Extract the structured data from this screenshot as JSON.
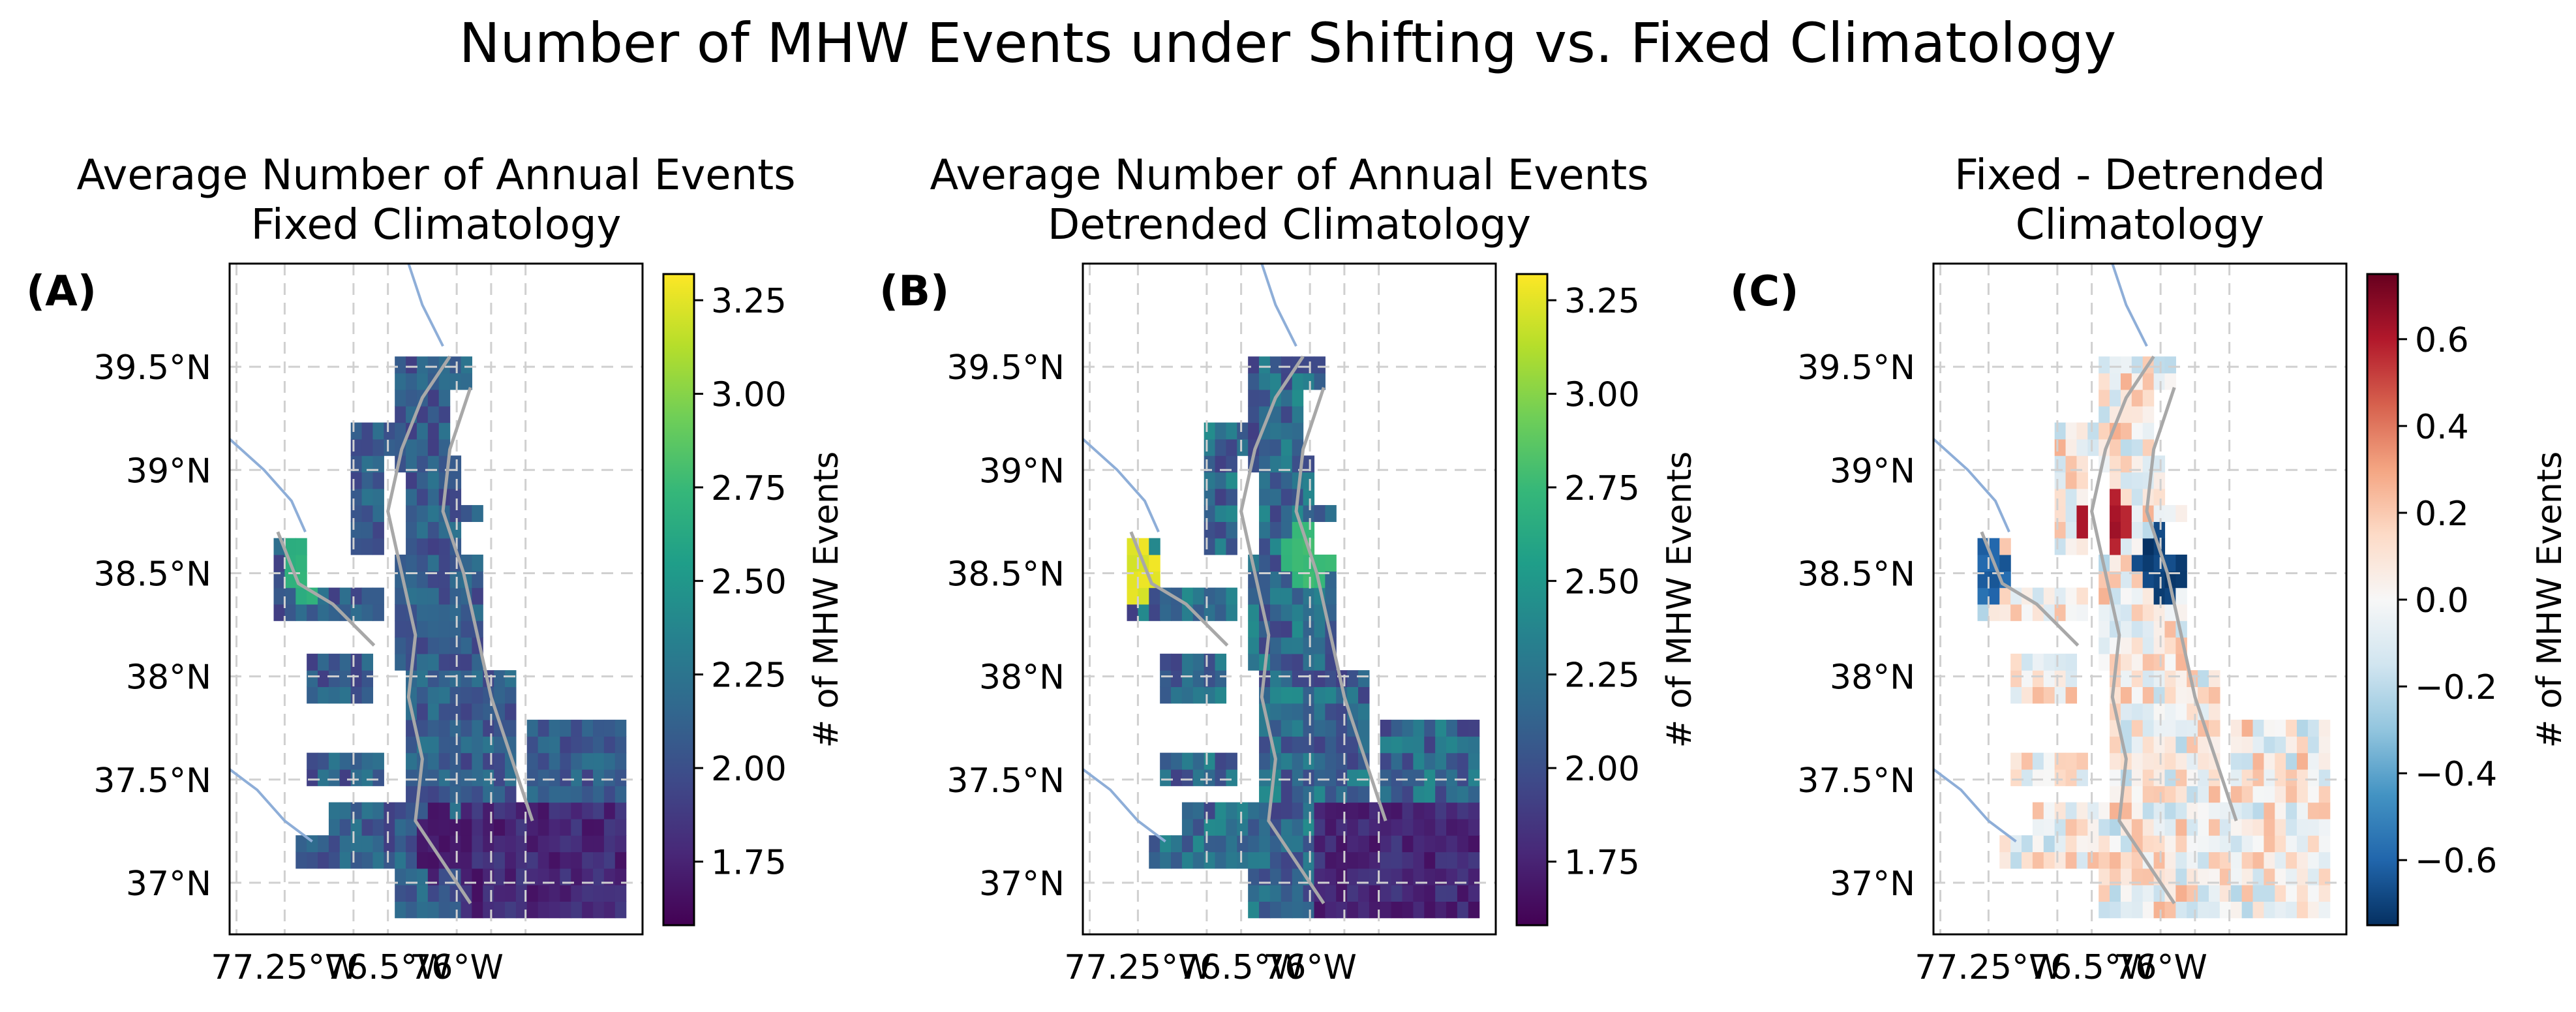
{
  "suptitle": "Number of MHW Events under Shifting vs. Fixed Climatology",
  "chart_data": [
    {
      "type": "heatmap",
      "panel_label": "(A)",
      "title_lines": [
        "Average Number of Annual Events",
        "Fixed Climatology"
      ],
      "colormap": "viridis",
      "colorbar": {
        "label": "# of MHW Events",
        "range": [
          1.58,
          3.32
        ],
        "ticks": [
          1.75,
          2.0,
          2.25,
          2.5,
          2.75,
          3.0,
          3.25
        ],
        "tick_labels": [
          "1.75",
          "2.00",
          "2.25",
          "2.50",
          "2.75",
          "3.00",
          "3.25"
        ]
      },
      "x_ticks": [
        -77.25,
        -76.5,
        -76.0
      ],
      "x_tick_labels": [
        "77.25°W",
        "76.5°W",
        "76°W"
      ],
      "y_ticks": [
        37.0,
        37.5,
        38.0,
        38.5,
        39.0,
        39.5
      ],
      "y_tick_labels": [
        "37°N",
        "37.5°N",
        "38°N",
        "38.5°N",
        "39°N",
        "39.5°N"
      ],
      "xlim": [
        -77.65,
        -74.65
      ],
      "ylim": [
        36.75,
        40.0
      ],
      "grid": true,
      "typical_value_range": [
        1.65,
        2.75
      ],
      "hotspots": [
        {
          "lon": -77.1,
          "lat": 38.55,
          "value": 2.7
        },
        {
          "lon": -76.15,
          "lat": 37.2,
          "value": 1.7
        }
      ]
    },
    {
      "type": "heatmap",
      "panel_label": "(B)",
      "title_lines": [
        "Average Number of Annual Events",
        "Detrended Climatology"
      ],
      "colormap": "viridis",
      "colorbar": {
        "label": "# of MHW Events",
        "range": [
          1.58,
          3.32
        ],
        "ticks": [
          1.75,
          2.0,
          2.25,
          2.5,
          2.75,
          3.0,
          3.25
        ],
        "tick_labels": [
          "1.75",
          "2.00",
          "2.25",
          "2.50",
          "2.75",
          "3.00",
          "3.25"
        ]
      },
      "x_ticks": [
        -77.25,
        -76.5,
        -76.0
      ],
      "x_tick_labels": [
        "77.25°W",
        "76.5°W",
        "76°W"
      ],
      "y_ticks": [
        37.0,
        37.5,
        38.0,
        38.5,
        39.0,
        39.5
      ],
      "y_tick_labels": [
        "37°N",
        "37.5°N",
        "38°N",
        "38.5°N",
        "39°N",
        "39.5°N"
      ],
      "xlim": [
        -77.65,
        -74.65
      ],
      "ylim": [
        36.75,
        40.0
      ],
      "grid": true,
      "typical_value_range": [
        1.65,
        3.25
      ],
      "hotspots": [
        {
          "lon": -77.3,
          "lat": 38.5,
          "value": 3.25
        },
        {
          "lon": -76.0,
          "lat": 38.6,
          "value": 2.75
        }
      ]
    },
    {
      "type": "heatmap",
      "panel_label": "(C)",
      "title_lines": [
        "Fixed - Detrended",
        "Climatology"
      ],
      "colormap": "RdBu_r",
      "colorbar": {
        "label": "# of MHW Events",
        "range": [
          -0.75,
          0.75
        ],
        "ticks": [
          -0.6,
          -0.4,
          -0.2,
          0.0,
          0.2,
          0.4,
          0.6
        ],
        "tick_labels": [
          "−0.6",
          "−0.4",
          "−0.2",
          "0.0",
          "0.2",
          "0.4",
          "0.6"
        ]
      },
      "x_ticks": [
        -77.25,
        -76.5,
        -76.0
      ],
      "x_tick_labels": [
        "77.25°W",
        "76.5°W",
        "76°W"
      ],
      "y_ticks": [
        37.0,
        37.5,
        38.0,
        38.5,
        39.0,
        39.5
      ],
      "y_tick_labels": [
        "37°N",
        "37.5°N",
        "38°N",
        "38.5°N",
        "39°N",
        "39.5°N"
      ],
      "xlim": [
        -77.65,
        -74.65
      ],
      "ylim": [
        36.75,
        40.0
      ],
      "grid": true,
      "typical_value_range": [
        -0.7,
        0.7
      ],
      "hotspots": [
        {
          "lon": -77.3,
          "lat": 38.5,
          "value": -0.6
        },
        {
          "lon": -76.0,
          "lat": 38.55,
          "value": -0.7
        },
        {
          "lon": -76.4,
          "lat": 38.75,
          "value": 0.6
        }
      ]
    }
  ]
}
